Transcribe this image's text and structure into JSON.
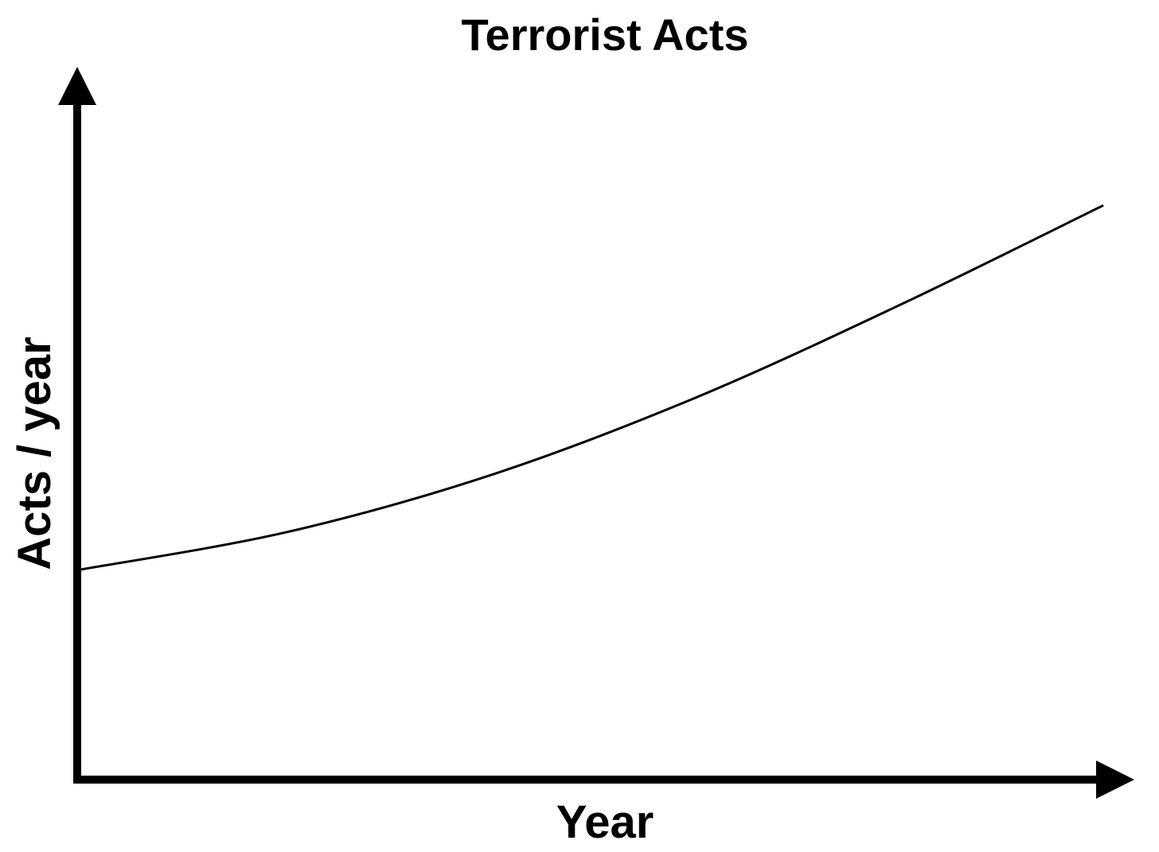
{
  "chart_data": {
    "type": "line",
    "title": "Terrorist Acts",
    "xlabel": "Year",
    "ylabel": "Acts / year",
    "xlim": [
      0,
      1
    ],
    "ylim": [
      0,
      1
    ],
    "grid": false,
    "legend": "none",
    "series": [
      {
        "values_x": [
          0,
          0.2,
          0.4,
          0.6,
          0.8,
          1.0
        ],
        "values_y": [
          0.295,
          0.347,
          0.427,
          0.535,
          0.665,
          0.805
        ]
      }
    ],
    "colors": {
      "axis": "#000000",
      "line": "#000000",
      "background": "#ffffff"
    }
  }
}
